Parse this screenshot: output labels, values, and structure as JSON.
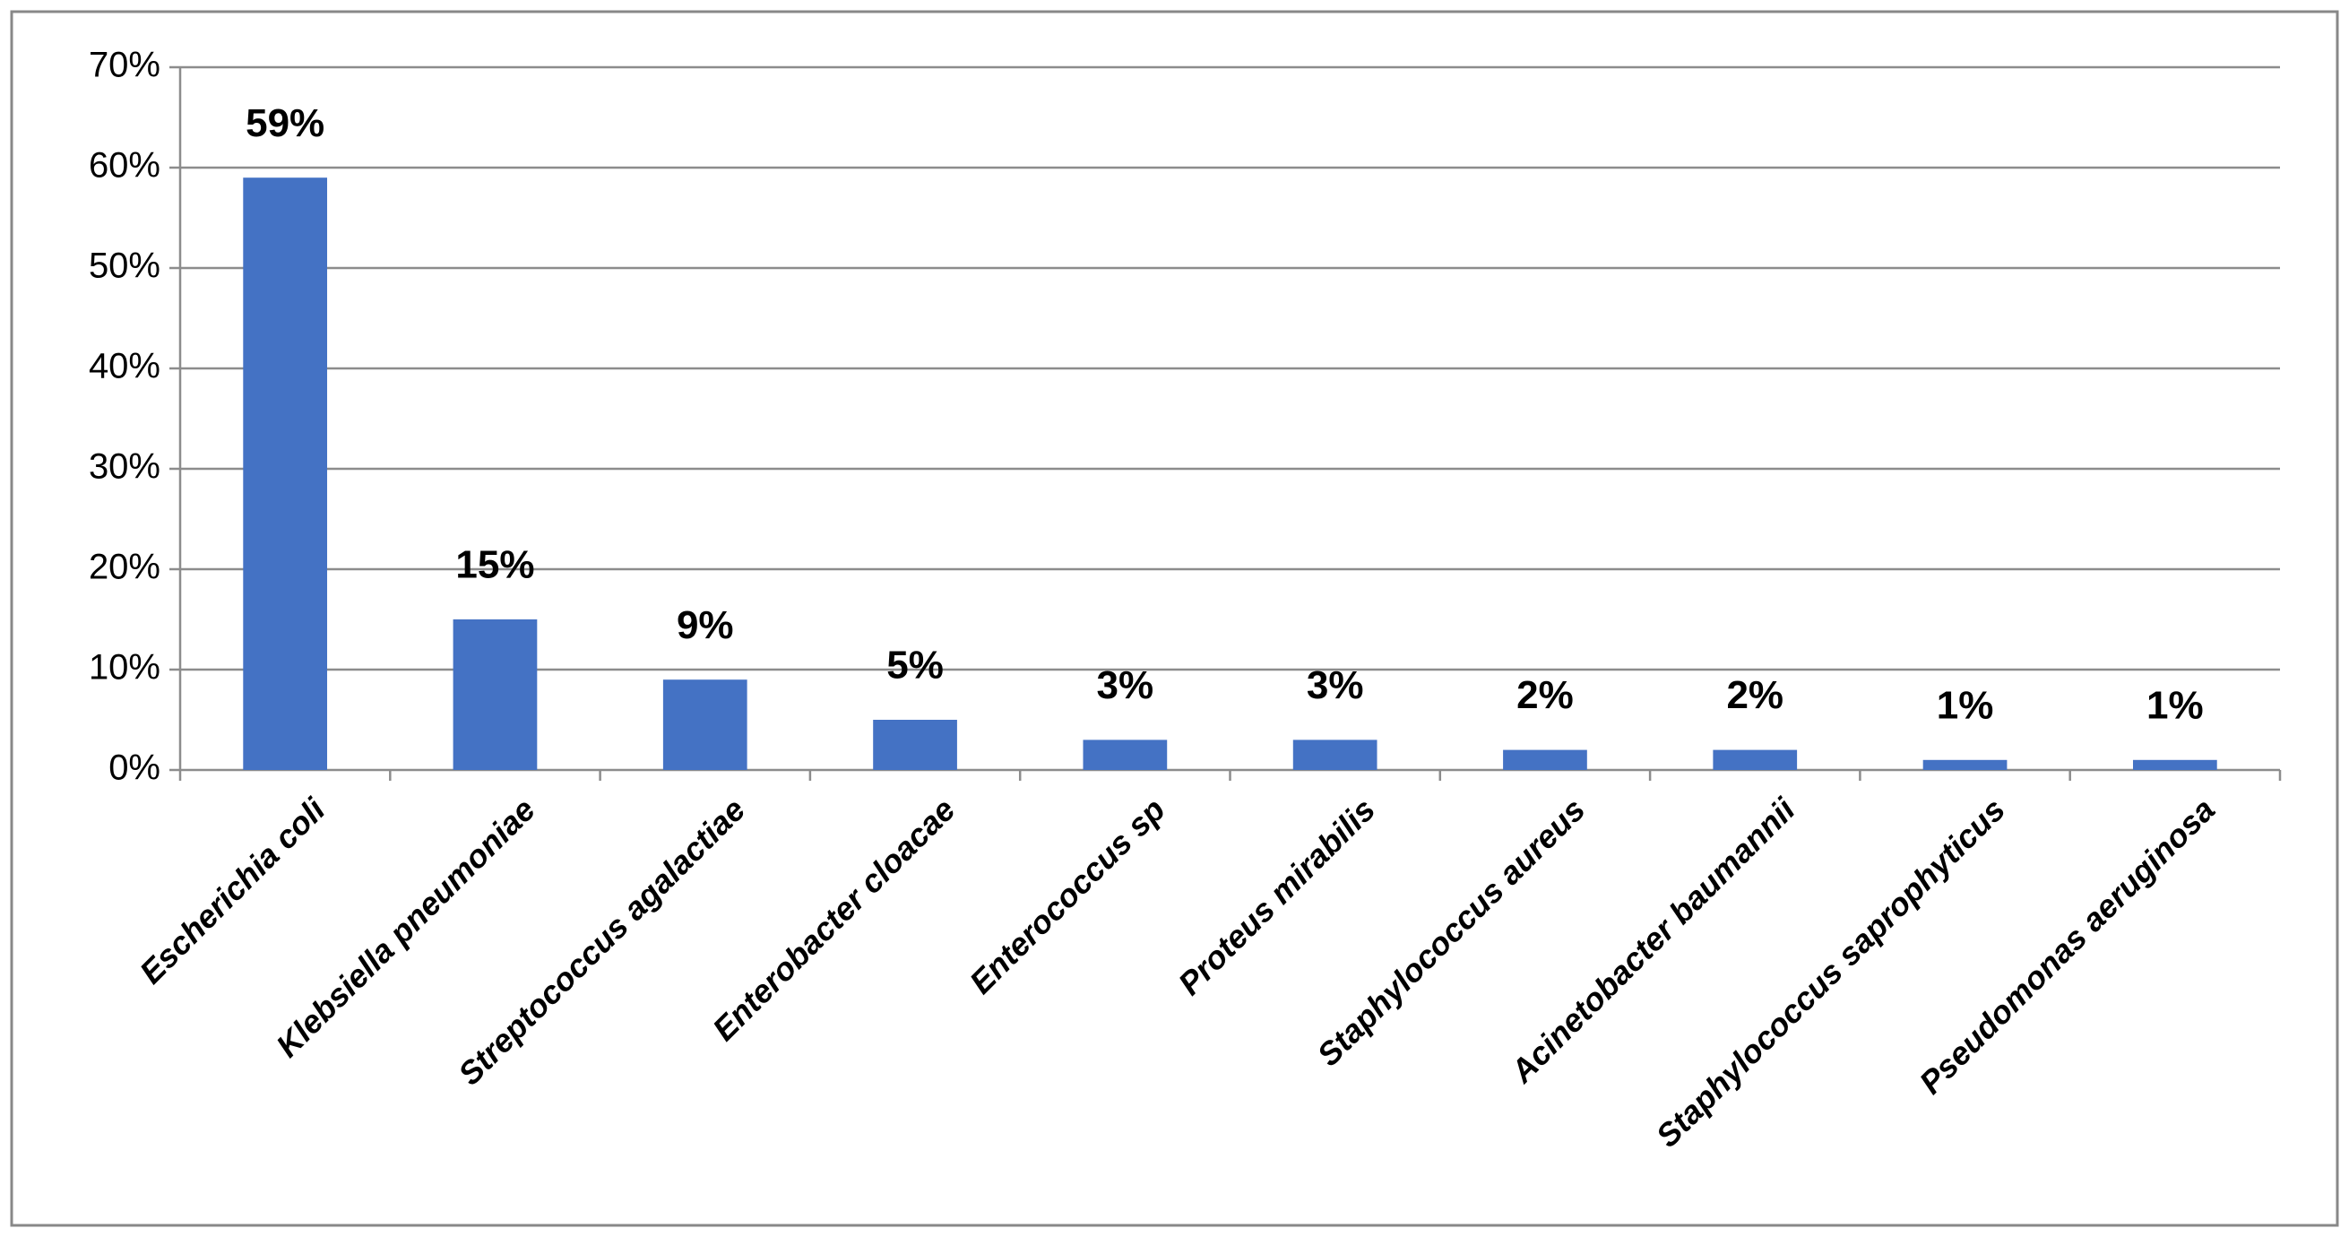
{
  "chart_data": {
    "type": "bar",
    "categories": [
      "Escherichia coli",
      "Klebsiella pneumoniae",
      "Streptococcus agalactiae",
      "Enterobacter cloacae",
      "Enterococcus sp",
      "Proteus mirabilis",
      "Staphylococcus aureus",
      "Acinetobacter baumannii",
      "Staphylococcus saprophyticus",
      "Pseudomonas aeruginosa"
    ],
    "values": [
      59,
      15,
      9,
      5,
      3,
      3,
      2,
      2,
      1,
      1
    ],
    "value_labels": [
      "59%",
      "15%",
      "9%",
      "5%",
      "3%",
      "3%",
      "2%",
      "2%",
      "1%",
      "1%"
    ],
    "color": "#4472c4",
    "ylim": [
      0,
      70
    ],
    "yticks": [
      {
        "value": 0,
        "label": "0%"
      },
      {
        "value": 10,
        "label": "10%"
      },
      {
        "value": 20,
        "label": "20%"
      },
      {
        "value": 30,
        "label": "30%"
      },
      {
        "value": 40,
        "label": "40%"
      },
      {
        "value": 50,
        "label": "50%"
      },
      {
        "value": 60,
        "label": "60%"
      },
      {
        "value": 70,
        "label": "70%"
      }
    ],
    "grid": true
  }
}
